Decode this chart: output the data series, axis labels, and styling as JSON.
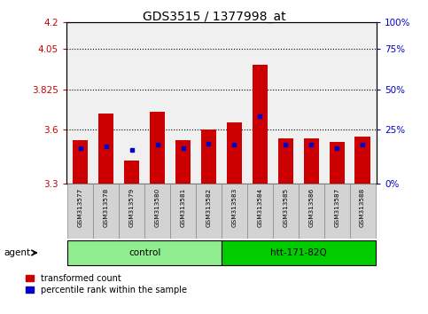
{
  "title": "GDS3515 / 1377998_at",
  "samples": [
    "GSM313577",
    "GSM313578",
    "GSM313579",
    "GSM313580",
    "GSM313581",
    "GSM313582",
    "GSM313583",
    "GSM313584",
    "GSM313585",
    "GSM313586",
    "GSM313587",
    "GSM313588"
  ],
  "red_values": [
    3.54,
    3.69,
    3.43,
    3.7,
    3.54,
    3.6,
    3.64,
    3.96,
    3.55,
    3.55,
    3.53,
    3.56
  ],
  "blue_values_pct": [
    22,
    23,
    21,
    24,
    22,
    25,
    24,
    42,
    24,
    24,
    22,
    24
  ],
  "y_min": 3.3,
  "y_max": 4.2,
  "y_ticks_left": [
    3.3,
    3.6,
    3.825,
    4.05,
    4.2
  ],
  "y_ticks_right_pct": [
    0,
    25,
    50,
    75,
    100
  ],
  "y_ticks_right_vals": [
    3.3,
    3.6,
    3.825,
    4.05,
    4.2
  ],
  "dotted_lines": [
    4.05,
    3.825,
    3.6
  ],
  "groups": [
    {
      "label": "control",
      "start": 0,
      "end": 5,
      "color": "#90EE90"
    },
    {
      "label": "htt-171-82Q",
      "start": 6,
      "end": 11,
      "color": "#00CC00"
    }
  ],
  "agent_label": "agent",
  "bar_width": 0.6,
  "red_color": "#CC0000",
  "blue_color": "#0000CC",
  "tick_color_left": "#CC0000",
  "tick_color_right": "#0000CC",
  "legend_red": "transformed count",
  "legend_blue": "percentile rank within the sample",
  "bg_color": "#f0f0f0"
}
